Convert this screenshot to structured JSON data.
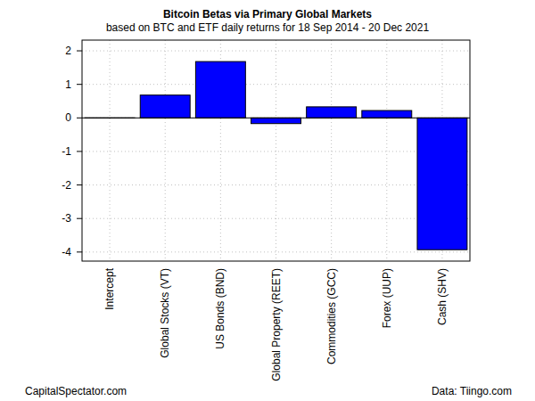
{
  "chart_data": {
    "type": "bar",
    "title": "Bitcoin Betas via Primary Global Markets",
    "subtitle": "based on BTC and ETF daily returns for 18 Sep 2014 - 20 Dec 2021",
    "categories": [
      "Intercept",
      "Global Stocks (VT)",
      "US Bonds (BND)",
      "Global Property (REET)",
      "Commodities (GCC)",
      "Forex (UUP)",
      "Cash (SHV)"
    ],
    "values": [
      0.002,
      0.68,
      1.68,
      -0.17,
      0.33,
      0.22,
      -3.93
    ],
    "color": "#0000ff",
    "ylim": [
      -4.27,
      2.32
    ],
    "yticks": [
      -4,
      -3,
      -2,
      -1,
      0,
      1,
      2
    ],
    "grid": true,
    "annotations": [
      "CapitalSpectator.com",
      "Data: Tiingo.com"
    ]
  }
}
